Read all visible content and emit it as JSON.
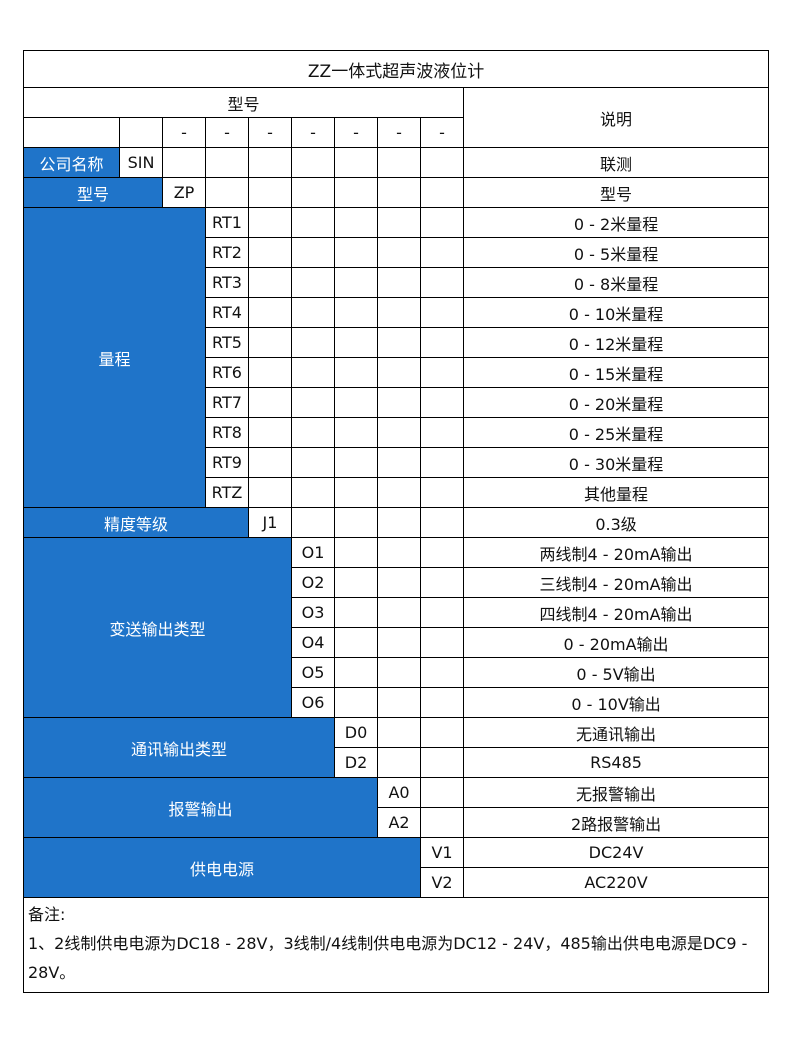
{
  "title": "ZZ一体式超声波液位计",
  "model_header": "型号",
  "desc_header": "说明",
  "dash": "-",
  "company": {
    "label": "公司名称",
    "code": "SIN",
    "desc": "联测"
  },
  "model": {
    "label": "型号",
    "code": "ZP",
    "desc": "型号"
  },
  "range": {
    "label": "量程",
    "items": [
      {
        "code": "RT1",
        "desc": "0 - 2米量程"
      },
      {
        "code": "RT2",
        "desc": "0 - 5米量程"
      },
      {
        "code": "RT3",
        "desc": "0 - 8米量程"
      },
      {
        "code": "RT4",
        "desc": "0 - 10米量程"
      },
      {
        "code": "RT5",
        "desc": "0 - 12米量程"
      },
      {
        "code": "RT6",
        "desc": "0 - 15米量程"
      },
      {
        "code": "RT7",
        "desc": "0 - 20米量程"
      },
      {
        "code": "RT8",
        "desc": "0 - 25米量程"
      },
      {
        "code": "RT9",
        "desc": "0 - 30米量程"
      },
      {
        "code": "RTZ",
        "desc": "其他量程"
      }
    ]
  },
  "accuracy": {
    "label": "精度等级",
    "code": "J1",
    "desc": "0.3级"
  },
  "output": {
    "label": "变送输出类型",
    "items": [
      {
        "code": "O1",
        "desc": "两线制4 - 20mA输出"
      },
      {
        "code": "O2",
        "desc": "三线制4 - 20mA输出"
      },
      {
        "code": "O3",
        "desc": "四线制4 - 20mA输出"
      },
      {
        "code": "O4",
        "desc": "0 - 20mA输出"
      },
      {
        "code": "O5",
        "desc": "0 - 5V输出"
      },
      {
        "code": "O6",
        "desc": "0 - 10V输出"
      }
    ]
  },
  "comm": {
    "label": "通讯输出类型",
    "items": [
      {
        "code": "D0",
        "desc": "无通讯输出"
      },
      {
        "code": "D2",
        "desc": "RS485"
      }
    ]
  },
  "alarm": {
    "label": "报警输出",
    "items": [
      {
        "code": "A0",
        "desc": "无报警输出"
      },
      {
        "code": "A2",
        "desc": "2路报警输出"
      }
    ]
  },
  "power": {
    "label": "供电电源",
    "items": [
      {
        "code": "V1",
        "desc": "DC24V"
      },
      {
        "code": "V2",
        "desc": "AC220V"
      }
    ]
  },
  "notes": {
    "title": "备注:",
    "text": "1、2线制供电电源为DC18 - 28V，3线制/4线制供电电源为DC12 - 24V，485输出供电电源是DC9 - 28V。"
  },
  "colors": {
    "header_blue": "#1f74c9"
  }
}
